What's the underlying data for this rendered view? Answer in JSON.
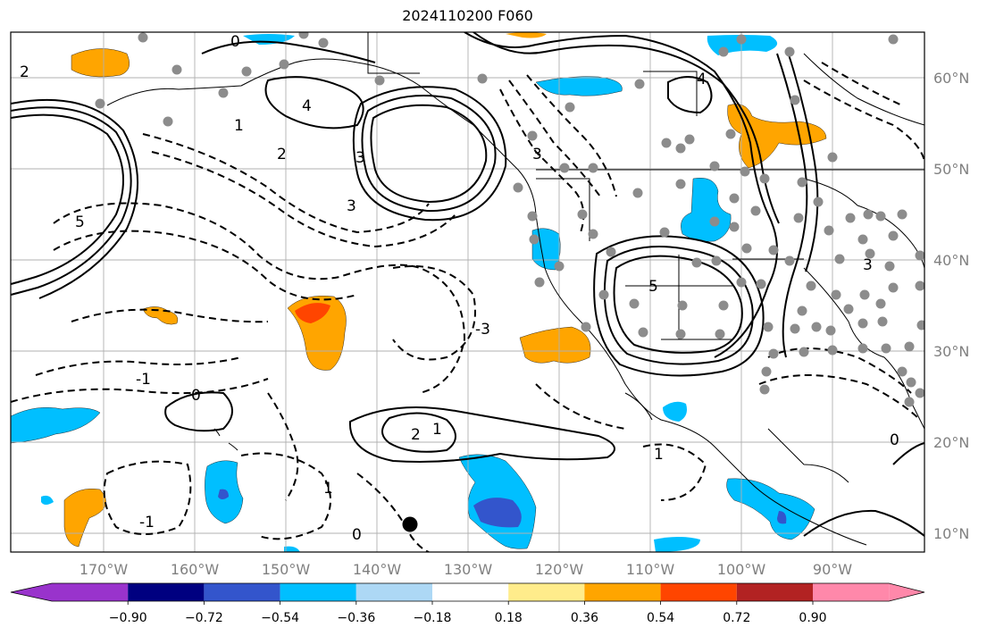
{
  "title": "2024110200 F060",
  "lon_labels": [
    "170°W",
    "160°W",
    "150°W",
    "140°W",
    "130°W",
    "120°W",
    "110°W",
    "100°W",
    "90°W"
  ],
  "lat_labels": [
    "60°N",
    "50°N",
    "40°N",
    "30°N",
    "20°N",
    "10°N"
  ],
  "colorbar": {
    "ticks": [
      "−0.90",
      "−0.72",
      "−0.54",
      "−0.36",
      "−0.18",
      "0.18",
      "0.36",
      "0.54",
      "0.72",
      "0.90"
    ],
    "colors": [
      "#9933cc",
      "#000080",
      "#3355cc",
      "#00bfff",
      "#add8f5",
      "#ffffff",
      "#ffec8b",
      "#ffa500",
      "#ff4500",
      "#b22222",
      "#ff88aa"
    ]
  },
  "contour_labels": [
    "0",
    "1",
    "2",
    "3",
    "4",
    "5",
    "-3",
    "-1",
    "0",
    "1",
    "2",
    "3",
    "4",
    "5",
    "3",
    "1",
    "0",
    "-1",
    "3",
    "2",
    "1",
    "0"
  ],
  "colors": {
    "positive_fill": "#ffa500",
    "negative_fill": "#00bfff",
    "strong_negative": "#3355cc",
    "strong_positive": "#ff4500",
    "contour": "#000000",
    "stations": "#8c8c8c",
    "grid": "#b0b0b0",
    "axis_text": "#808080"
  }
}
